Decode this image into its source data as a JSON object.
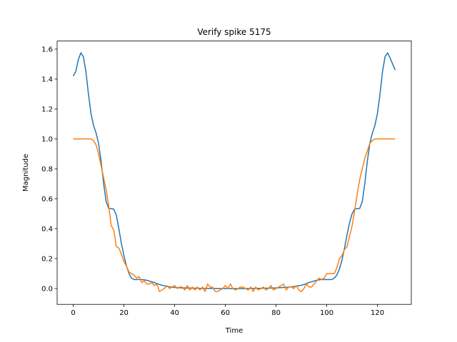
{
  "chart_data": {
    "type": "line",
    "title": "Verify spike 5175",
    "xlabel": "Time",
    "ylabel": "Magnitude",
    "x": [
      0,
      1,
      2,
      3,
      4,
      5,
      6,
      7,
      8,
      9,
      10,
      11,
      12,
      13,
      14,
      15,
      16,
      17,
      18,
      19,
      20,
      21,
      22,
      23,
      24,
      25,
      26,
      27,
      28,
      29,
      30,
      31,
      32,
      33,
      34,
      35,
      36,
      37,
      38,
      39,
      40,
      41,
      42,
      43,
      44,
      45,
      46,
      47,
      48,
      49,
      50,
      51,
      52,
      53,
      54,
      55,
      56,
      57,
      58,
      59,
      60,
      61,
      62,
      63,
      64,
      65,
      66,
      67,
      68,
      69,
      70,
      71,
      72,
      73,
      74,
      75,
      76,
      77,
      78,
      79,
      80,
      81,
      82,
      83,
      84,
      85,
      86,
      87,
      88,
      89,
      90,
      91,
      92,
      93,
      94,
      95,
      96,
      97,
      98,
      99,
      100,
      101,
      102,
      103,
      104,
      105,
      106,
      107,
      108,
      109,
      110,
      111,
      112,
      113,
      114,
      115,
      116,
      117,
      118,
      119,
      120,
      121,
      122,
      123,
      124,
      125,
      126,
      127
    ],
    "series": [
      {
        "color": "#1f77b4",
        "values": [
          1.42,
          1.45,
          1.53,
          1.575,
          1.55,
          1.45,
          1.3,
          1.17,
          1.09,
          1.04,
          0.97,
          0.85,
          0.7,
          0.58,
          0.535,
          0.535,
          0.53,
          0.49,
          0.4,
          0.3,
          0.22,
          0.15,
          0.1,
          0.07,
          0.06,
          0.06,
          0.06,
          0.06,
          0.058,
          0.055,
          0.05,
          0.045,
          0.04,
          0.033,
          0.027,
          0.022,
          0.018,
          0.014,
          0.011,
          0.009,
          0.007,
          0.006,
          0.005,
          0.004,
          0.004,
          0.003,
          0.003,
          0.002,
          0.002,
          0.002,
          0.001,
          0.001,
          0.001,
          0.001,
          0.001,
          0.001,
          0.001,
          0,
          0,
          0,
          0,
          0,
          0,
          0,
          0,
          0,
          0,
          0,
          0,
          0,
          0.001,
          0.001,
          0.001,
          0.001,
          0.001,
          0.002,
          0.002,
          0.002,
          0.003,
          0.003,
          0.004,
          0.005,
          0.006,
          0.007,
          0.008,
          0.009,
          0.011,
          0.013,
          0.016,
          0.019,
          0.022,
          0.027,
          0.033,
          0.04,
          0.045,
          0.05,
          0.055,
          0.058,
          0.06,
          0.06,
          0.06,
          0.06,
          0.06,
          0.07,
          0.09,
          0.13,
          0.19,
          0.27,
          0.36,
          0.44,
          0.5,
          0.53,
          0.535,
          0.535,
          0.58,
          0.7,
          0.85,
          0.97,
          1.04,
          1.09,
          1.17,
          1.3,
          1.45,
          1.55,
          1.575,
          1.54,
          1.5,
          1.46
        ]
      },
      {
        "color": "#ff7f0e",
        "values": [
          1,
          1,
          1,
          1,
          1,
          1,
          1,
          1,
          0.99,
          0.96,
          0.9,
          0.82,
          0.74,
          0.66,
          0.55,
          0.42,
          0.39,
          0.28,
          0.27,
          0.23,
          0.18,
          0.15,
          0.11,
          0.1,
          0.09,
          0.07,
          0.08,
          0.04,
          0.05,
          0.03,
          0.03,
          0.04,
          0.02,
          0.03,
          -0.02,
          -0.01,
          0,
          0.02,
          0,
          0.01,
          0.02,
          0,
          0.01,
          0.01,
          -0.01,
          0.02,
          -0.01,
          0.01,
          -0.01,
          0.01,
          -0.01,
          0.01,
          -0.02,
          0.03,
          0.01,
          0.01,
          -0.02,
          -0.02,
          -0.01,
          0,
          0.02,
          0,
          0.03,
          0,
          -0.01,
          0,
          0.01,
          0.01,
          0,
          -0.01,
          0.01,
          -0.02,
          0.01,
          -0.01,
          0,
          0.01,
          -0.01,
          0,
          0.02,
          -0.01,
          0,
          0.01,
          0.02,
          0.03,
          -0.01,
          0.01,
          0.01,
          0,
          0.02,
          -0.01,
          -0.02,
          0,
          0.03,
          0.01,
          0.01,
          0.03,
          0.05,
          0.07,
          0.06,
          0.07,
          0.1,
          0.1,
          0.1,
          0.1,
          0.14,
          0.2,
          0.22,
          0.26,
          0.28,
          0.35,
          0.42,
          0.52,
          0.63,
          0.73,
          0.8,
          0.87,
          0.92,
          0.97,
          0.99,
          1,
          1,
          1,
          1,
          1,
          1,
          1,
          1,
          1
        ]
      }
    ],
    "xlim": [
      -6.35,
      133.35
    ],
    "ylim": [
      -0.106,
      1.654
    ],
    "xticks": [
      0,
      20,
      40,
      60,
      80,
      100,
      120
    ],
    "yticks": [
      {
        "value": 0,
        "label": "0.0"
      },
      {
        "value": 0.2,
        "label": "0.2"
      },
      {
        "value": 0.4,
        "label": "0.4"
      },
      {
        "value": 0.6,
        "label": "0.6"
      },
      {
        "value": 0.8,
        "label": "0.8"
      },
      {
        "value": 1,
        "label": "1.0"
      },
      {
        "value": 1.2,
        "label": "1.2"
      },
      {
        "value": 1.4,
        "label": "1.4"
      },
      {
        "value": 1.6,
        "label": "1.6"
      }
    ]
  }
}
